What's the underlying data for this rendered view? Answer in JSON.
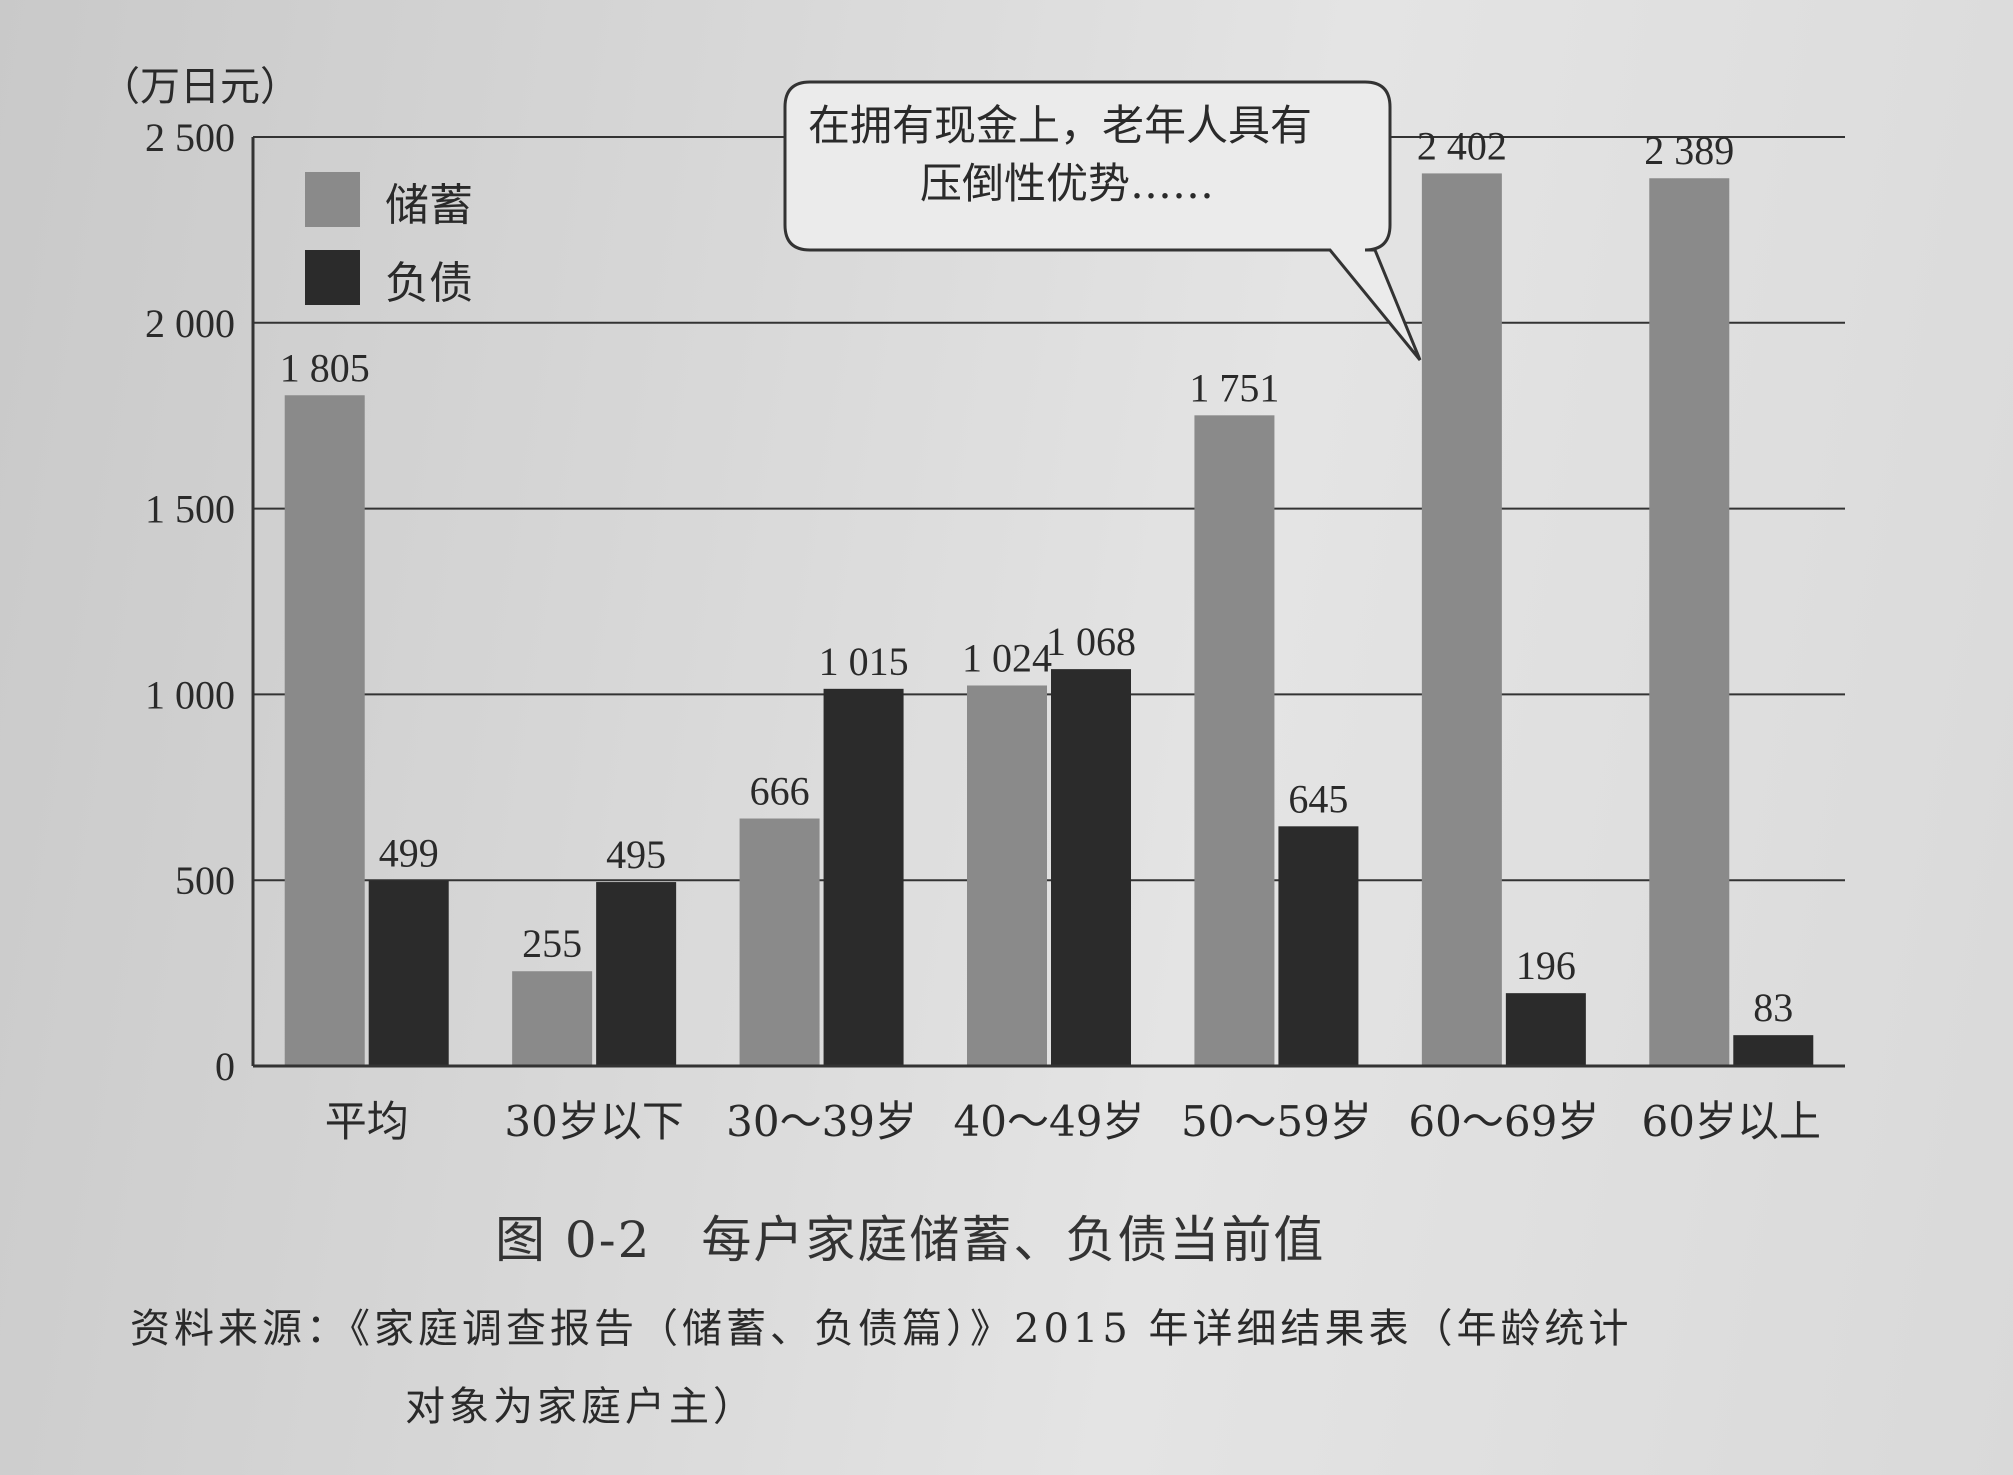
{
  "chart_data": {
    "type": "bar",
    "unit_label": "（万日元）",
    "categories": [
      "平均",
      "30岁以下",
      "30～39岁",
      "40～49岁",
      "50～59岁",
      "60～69岁",
      "60岁以上"
    ],
    "series": [
      {
        "name": "储蓄",
        "values": [
          1805,
          255,
          666,
          1024,
          1751,
          2402,
          2389
        ],
        "value_labels": [
          "1 805",
          "255",
          "666",
          "1 024",
          "1 751",
          "2 402",
          "2 389"
        ],
        "color": "#8a8a8a"
      },
      {
        "name": "负债",
        "values": [
          499,
          495,
          1015,
          1068,
          645,
          196,
          83
        ],
        "value_labels": [
          "499",
          "495",
          "1 015",
          "1 068",
          "645",
          "196",
          "83"
        ],
        "color": "#2b2b2b"
      }
    ],
    "ylim": [
      0,
      2500
    ],
    "yticks": [
      {
        "value": 0,
        "label": "0"
      },
      {
        "value": 500,
        "label": "500"
      },
      {
        "value": 1000,
        "label": "1 000"
      },
      {
        "value": 1500,
        "label": "1 500"
      },
      {
        "value": 2000,
        "label": "2 000"
      },
      {
        "value": 2500,
        "label": "2 500"
      }
    ],
    "grid": true,
    "legend_position": "top-left",
    "annotation": {
      "line1": "在拥有现金上，老年人具有",
      "line2": "压倒性优势……"
    }
  },
  "caption": {
    "figure_number": "图 0-2",
    "title": "每户家庭储蓄、负债当前值"
  },
  "source": {
    "line1": "资料来源：《家庭调查报告（储蓄、负债篇）》2015 年详细结果表（年龄统计",
    "line2": "对象为家庭户主）"
  }
}
